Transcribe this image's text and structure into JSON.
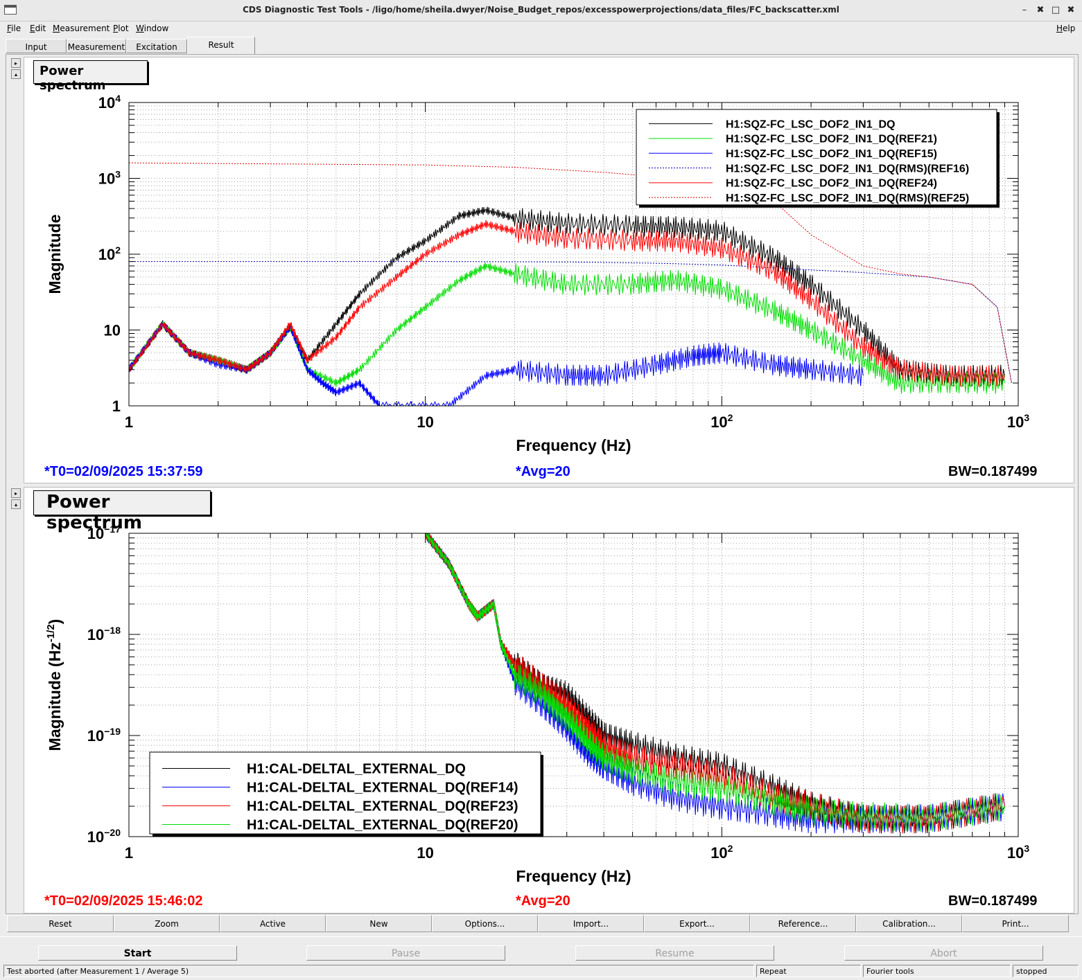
{
  "window": {
    "title": "CDS Diagnostic Test Tools - /ligo/home/sheila.dwyer/Noise_Budget_repos/excesspowerprojections/data_files/FC_backscatter.xml",
    "controls": [
      "–",
      "✖",
      "□",
      "✖"
    ]
  },
  "menu": {
    "items": [
      {
        "label": "File",
        "u": "F",
        "rest": "ile"
      },
      {
        "label": "Edit",
        "u": "E",
        "rest": "dit"
      },
      {
        "label": "Measurement",
        "u": "M",
        "rest": "easurement"
      },
      {
        "label": "Plot",
        "u": "P",
        "rest": "lot"
      },
      {
        "label": "Window",
        "u": "W",
        "rest": "indow"
      }
    ],
    "help": {
      "u": "H",
      "rest": "elp"
    }
  },
  "tabs": [
    {
      "label": "Input"
    },
    {
      "label": "Measurement"
    },
    {
      "label": "Excitation"
    },
    {
      "label": "Result",
      "active": true
    }
  ],
  "plots": [
    {
      "title": "Power spectrum",
      "info": {
        "t0": "*T0=02/09/2025 15:37:59",
        "avg": "*Avg=20",
        "bw": "BW=0.187499",
        "color": "#0000ff"
      },
      "chart_data": {
        "type": "line",
        "xscale": "log",
        "yscale": "log",
        "xlim": [
          1,
          1000
        ],
        "ylim": [
          1,
          10000
        ],
        "xlabel": "Frequency (Hz)",
        "ylabel": "Magnitude",
        "x_ticks": [
          "1",
          "10",
          "10^2",
          "10^3"
        ],
        "y_ticks": [
          "1",
          "10",
          "10^2",
          "10^3",
          "10^4"
        ],
        "grid": true,
        "legend_position": "top-right",
        "series": [
          {
            "name": "H1:SQZ-FC_LSC_DOF2_IN1_DQ",
            "color": "#000000",
            "style": "solid",
            "x": [
              1,
              1.3,
              1.6,
              2,
              2.5,
              3,
              3.5,
              4,
              5,
              6,
              8,
              10,
              13,
              16,
              20,
              30,
              50,
              70,
              100,
              150,
              200,
              300,
              400,
              600,
              900
            ],
            "y": [
              3,
              12,
              5,
              4,
              3,
              5,
              11,
              4,
              12,
              30,
              90,
              150,
              320,
              380,
              300,
              250,
              240,
              230,
              200,
              90,
              40,
              10,
              3,
              2.5,
              2.5
            ]
          },
          {
            "name": "H1:SQZ-FC_LSC_DOF2_IN1_DQ(REF21)",
            "color": "#00dd00",
            "style": "solid",
            "x": [
              1,
              1.3,
              1.6,
              2,
              2.5,
              3,
              3.5,
              4,
              5,
              6,
              8,
              10,
              13,
              16,
              20,
              30,
              50,
              70,
              100,
              150,
              200,
              300,
              400,
              600,
              900
            ],
            "y": [
              3,
              12,
              5,
              4,
              3,
              5,
              11,
              3,
              2,
              3,
              10,
              20,
              45,
              70,
              55,
              40,
              40,
              45,
              35,
              18,
              10,
              4,
              2,
              2,
              2
            ]
          },
          {
            "name": "H1:SQZ-FC_LSC_DOF2_IN1_DQ(REF15)",
            "color": "#0000ff",
            "style": "solid",
            "x": [
              1,
              1.3,
              1.6,
              2,
              2.5,
              3,
              3.5,
              4,
              4.5,
              5,
              6,
              7,
              12,
              16,
              20,
              30,
              40,
              60,
              80,
              100,
              150,
              200,
              300
            ],
            "y": [
              3,
              12,
              5,
              3.5,
              3,
              5,
              11,
              3,
              2,
              1.5,
              2,
              1,
              1,
              2.5,
              3,
              2.5,
              2.5,
              3.5,
              4.5,
              5,
              3.5,
              3,
              2.5
            ]
          },
          {
            "name": "H1:SQZ-FC_LSC_DOF2_IN1_DQ(RMS)(REF16)",
            "color": "#0000aa",
            "style": "dashed",
            "x": [
              1,
              10,
              30,
              60,
              100,
              200,
              300,
              500,
              700,
              850,
              950
            ],
            "y": [
              80,
              80,
              79,
              76,
              72,
              62,
              57,
              50,
              40,
              20,
              2
            ]
          },
          {
            "name": "H1:SQZ-FC_LSC_DOF2_IN1_DQ(REF24)",
            "color": "#ff0000",
            "style": "solid",
            "x": [
              1,
              1.3,
              1.6,
              2,
              2.5,
              3,
              3.5,
              4,
              5,
              6,
              8,
              10,
              13,
              16,
              20,
              30,
              50,
              70,
              100,
              150,
              200,
              300,
              400,
              600,
              900
            ],
            "y": [
              3,
              12,
              5,
              4,
              3,
              5,
              12,
              4,
              8,
              20,
              50,
              100,
              180,
              250,
              200,
              160,
              150,
              150,
              120,
              60,
              25,
              6,
              3,
              2.5,
              2.5
            ]
          },
          {
            "name": "H1:SQZ-FC_LSC_DOF2_IN1_DQ(RMS)(REF25)",
            "color": "#dd0000",
            "style": "dashed",
            "x": [
              1,
              10,
              20,
              40,
              70,
              100,
              150,
              200,
              300,
              400,
              500,
              700,
              850,
              950
            ],
            "y": [
              1600,
              1500,
              1400,
              1200,
              1000,
              850,
              500,
              180,
              70,
              55,
              50,
              40,
              20,
              2
            ]
          }
        ]
      }
    },
    {
      "title": "Power spectrum",
      "info": {
        "t0": "*T0=02/09/2025 15:46:02",
        "avg": "*Avg=20",
        "bw": "BW=0.187499",
        "color": "#ff0000"
      },
      "chart_data": {
        "type": "line",
        "xscale": "log",
        "yscale": "log",
        "xlim": [
          1,
          1000
        ],
        "ylim": [
          1e-20,
          1e-17
        ],
        "xlabel": "Frequency (Hz)",
        "ylabel": "Magnitude (Hz^-1/2)",
        "x_ticks": [
          "1",
          "10",
          "10^2",
          "10^3"
        ],
        "y_ticks": [
          "10^-20",
          "10^-19",
          "10^-18",
          "10^-17"
        ],
        "grid": true,
        "legend_position": "bottom-left",
        "series": [
          {
            "name": "H1:CAL-DELTAL_EXTERNAL_DQ",
            "color": "#000000",
            "style": "solid",
            "x": [
              10,
              12,
              14,
              15,
              17,
              18,
              20,
              25,
              30,
              35,
              40,
              50,
              70,
              100,
              150,
              200,
              300,
              500,
              900
            ],
            "y": [
              1e-17,
              5e-18,
              2e-18,
              1.5e-18,
              2e-18,
              8e-19,
              5e-19,
              3e-19,
              2.5e-19,
              1.5e-19,
              1e-19,
              8e-20,
              6e-20,
              5e-20,
              3e-20,
              2e-20,
              1.5e-20,
              1.5e-20,
              2e-20
            ]
          },
          {
            "name": "H1:CAL-DELTAL_EXTERNAL_DQ(REF14)",
            "color": "#0000ff",
            "style": "solid",
            "x": [
              10,
              12,
              14,
              15,
              17,
              18,
              20,
              25,
              30,
              35,
              40,
              50,
              70,
              100,
              150,
              200,
              300,
              500,
              900
            ],
            "y": [
              1e-17,
              5e-18,
              2e-18,
              1.5e-18,
              2e-18,
              8e-19,
              3.5e-19,
              2e-19,
              1.2e-19,
              7e-20,
              5e-20,
              3.5e-20,
              2.5e-20,
              2e-20,
              1.7e-20,
              1.5e-20,
              1.5e-20,
              1.5e-20,
              2e-20
            ]
          },
          {
            "name": "H1:CAL-DELTAL_EXTERNAL_DQ(REF23)",
            "color": "#ff0000",
            "style": "solid",
            "x": [
              10,
              12,
              14,
              15,
              17,
              18,
              20,
              25,
              30,
              35,
              40,
              50,
              70,
              100,
              150,
              200,
              300,
              500,
              900
            ],
            "y": [
              1e-17,
              5e-18,
              2e-18,
              1.5e-18,
              2e-18,
              8e-19,
              5e-19,
              3e-19,
              2e-19,
              1.2e-19,
              8e-20,
              6e-20,
              5e-20,
              4e-20,
              2.5e-20,
              2e-20,
              1.5e-20,
              1.5e-20,
              2e-20
            ]
          },
          {
            "name": "H1:CAL-DELTAL_EXTERNAL_DQ(REF20)",
            "color": "#00dd00",
            "style": "solid",
            "x": [
              10,
              12,
              14,
              15,
              17,
              18,
              20,
              25,
              30,
              35,
              40,
              50,
              70,
              100,
              150,
              200,
              300,
              500,
              900
            ],
            "y": [
              1e-17,
              5e-18,
              2e-18,
              1.5e-18,
              2e-18,
              8e-19,
              4e-19,
              2.5e-19,
              1.5e-19,
              9e-20,
              6e-20,
              4.5e-20,
              3.5e-20,
              3e-20,
              2.2e-20,
              1.8e-20,
              1.6e-20,
              1.5e-20,
              2e-20
            ]
          }
        ]
      }
    }
  ],
  "toolbar": [
    "Reset",
    "Zoom",
    "Active",
    "New",
    "Options...",
    "Import...",
    "Export...",
    "Reference...",
    "Calibration...",
    "Print..."
  ],
  "actions": [
    {
      "label": "Start",
      "enabled": true
    },
    {
      "label": "Pause",
      "enabled": false
    },
    {
      "label": "Resume",
      "enabled": false
    },
    {
      "label": "Abort",
      "enabled": false
    }
  ],
  "status": {
    "message": "Test aborted (after Measurement 1 / Average 5)",
    "repeat": "Repeat",
    "tools": "Fourier tools",
    "state": "stopped"
  }
}
